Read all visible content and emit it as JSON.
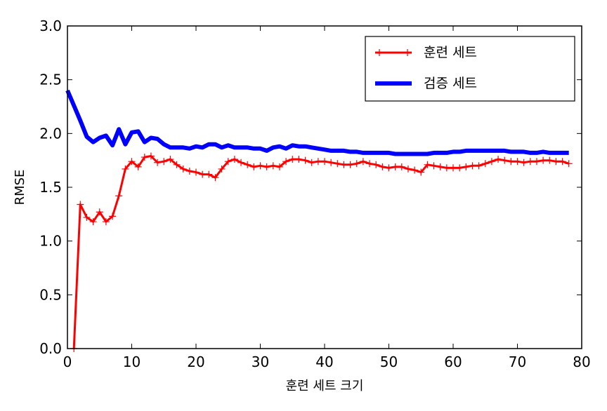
{
  "chart_data": {
    "type": "line",
    "xlabel": "훈련 세트 크기",
    "ylabel": "RMSE",
    "xlim": [
      0,
      80
    ],
    "ylim": [
      0,
      3.0
    ],
    "xticks": [
      0,
      10,
      20,
      30,
      40,
      50,
      60,
      70,
      80
    ],
    "xtick_labels": [
      "0",
      "10",
      "20",
      "30",
      "40",
      "50",
      "60",
      "70",
      "80"
    ],
    "yticks": [
      0,
      0.5,
      1.0,
      1.5,
      2.0,
      2.5,
      3.0
    ],
    "ytick_labels": [
      "0.0",
      "0.5",
      "1.0",
      "1.5",
      "2.0",
      "2.5",
      "3.0"
    ],
    "grid": false,
    "legend_position": "top-right",
    "series": [
      {
        "name": "훈련 세트",
        "color": "#ff0000",
        "style": "line-with-plus-markers",
        "x": [
          1,
          2,
          3,
          4,
          5,
          6,
          7,
          8,
          9,
          10,
          11,
          12,
          13,
          14,
          15,
          16,
          17,
          18,
          19,
          20,
          21,
          22,
          23,
          24,
          25,
          26,
          27,
          28,
          29,
          30,
          31,
          32,
          33,
          34,
          35,
          36,
          37,
          38,
          39,
          40,
          41,
          42,
          43,
          44,
          45,
          46,
          47,
          48,
          49,
          50,
          51,
          52,
          53,
          54,
          55,
          56,
          57,
          58,
          59,
          60,
          61,
          62,
          63,
          64,
          65,
          66,
          67,
          68,
          69,
          70,
          71,
          72,
          73,
          74,
          75,
          76,
          77,
          78
        ],
        "y": [
          0.0,
          1.34,
          1.22,
          1.18,
          1.27,
          1.18,
          1.23,
          1.42,
          1.67,
          1.74,
          1.69,
          1.78,
          1.79,
          1.73,
          1.74,
          1.76,
          1.71,
          1.67,
          1.65,
          1.64,
          1.62,
          1.62,
          1.59,
          1.67,
          1.74,
          1.76,
          1.73,
          1.71,
          1.69,
          1.7,
          1.69,
          1.7,
          1.69,
          1.74,
          1.76,
          1.76,
          1.75,
          1.73,
          1.74,
          1.74,
          1.73,
          1.72,
          1.71,
          1.71,
          1.72,
          1.74,
          1.72,
          1.71,
          1.69,
          1.68,
          1.69,
          1.69,
          1.67,
          1.66,
          1.64,
          1.71,
          1.7,
          1.69,
          1.68,
          1.68,
          1.68,
          1.69,
          1.7,
          1.7,
          1.72,
          1.74,
          1.76,
          1.75,
          1.74,
          1.74,
          1.73,
          1.74,
          1.74,
          1.75,
          1.75,
          1.74,
          1.74,
          1.72
        ]
      },
      {
        "name": "검증 세트",
        "color": "#0000ff",
        "style": "thick-line",
        "x": [
          0,
          1,
          2,
          3,
          4,
          5,
          6,
          7,
          8,
          9,
          10,
          11,
          12,
          13,
          14,
          15,
          16,
          17,
          18,
          19,
          20,
          21,
          22,
          23,
          24,
          25,
          26,
          27,
          28,
          29,
          30,
          31,
          32,
          33,
          34,
          35,
          36,
          37,
          38,
          39,
          40,
          41,
          42,
          43,
          44,
          45,
          46,
          47,
          48,
          49,
          50,
          51,
          52,
          53,
          54,
          55,
          56,
          57,
          58,
          59,
          60,
          61,
          62,
          63,
          64,
          65,
          66,
          67,
          68,
          69,
          70,
          71,
          72,
          73,
          74,
          75,
          76,
          77,
          78
        ],
        "y": [
          2.4,
          2.26,
          2.12,
          1.97,
          1.92,
          1.96,
          1.98,
          1.89,
          2.04,
          1.9,
          2.01,
          2.02,
          1.92,
          1.96,
          1.95,
          1.9,
          1.87,
          1.87,
          1.87,
          1.86,
          1.88,
          1.87,
          1.9,
          1.9,
          1.87,
          1.89,
          1.87,
          1.87,
          1.87,
          1.86,
          1.86,
          1.84,
          1.87,
          1.88,
          1.86,
          1.89,
          1.88,
          1.88,
          1.87,
          1.86,
          1.85,
          1.84,
          1.84,
          1.84,
          1.83,
          1.83,
          1.82,
          1.82,
          1.82,
          1.82,
          1.82,
          1.81,
          1.81,
          1.81,
          1.81,
          1.81,
          1.81,
          1.82,
          1.82,
          1.82,
          1.83,
          1.83,
          1.84,
          1.84,
          1.84,
          1.84,
          1.84,
          1.84,
          1.84,
          1.83,
          1.83,
          1.83,
          1.82,
          1.82,
          1.83,
          1.82,
          1.82,
          1.82,
          1.82
        ]
      }
    ]
  }
}
